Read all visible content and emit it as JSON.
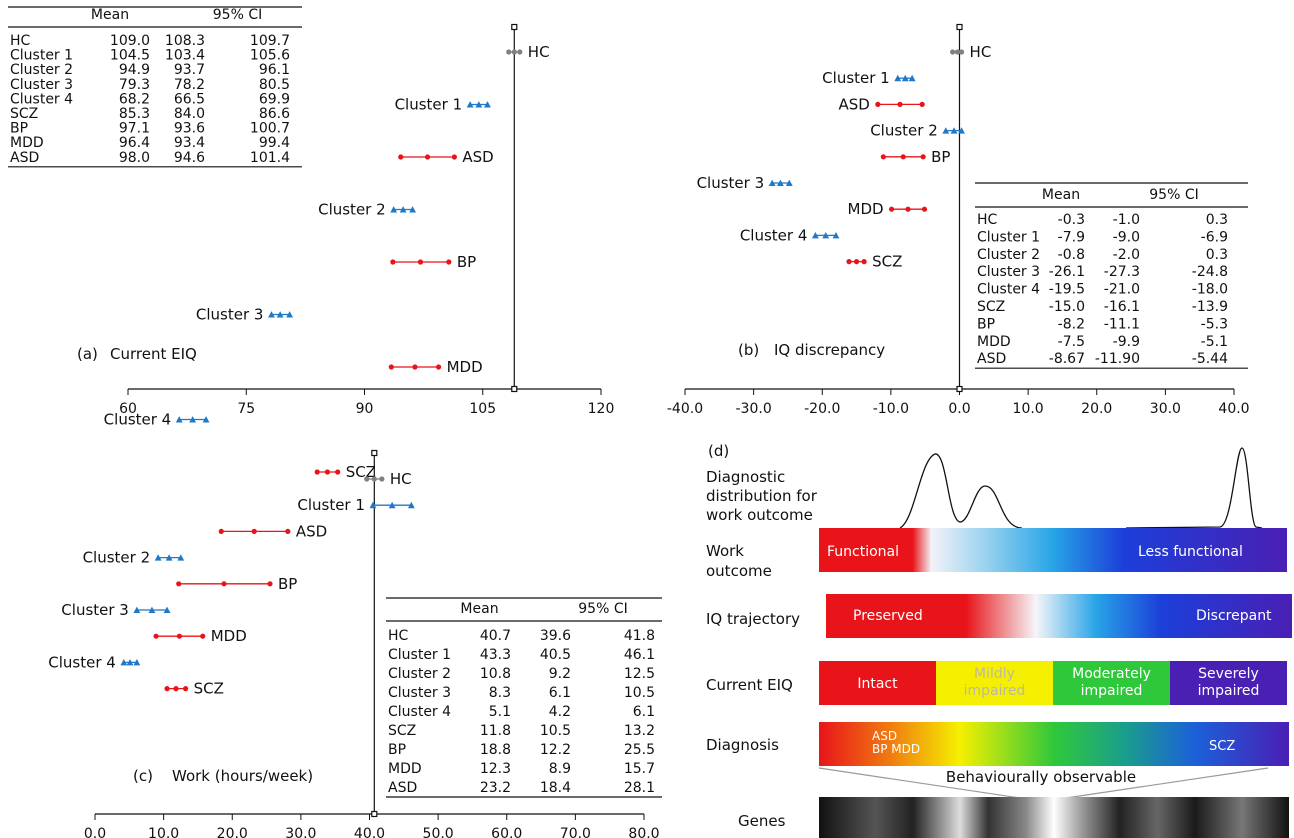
{
  "chart_data": [
    {
      "panel": "(a)",
      "type": "forest",
      "caption_label": "(a)",
      "title": "Current EIQ",
      "x_ticks": [
        "60",
        "75",
        "90",
        "105",
        "120"
      ],
      "xlim": [
        60,
        120
      ],
      "ref_value": 109.0,
      "table_headers": [
        "",
        "Mean",
        "95% CI",
        ""
      ],
      "rows": [
        {
          "label": "HC",
          "mean": "109.0",
          "lo": "108.3",
          "hi": "109.7",
          "group": "hc"
        },
        {
          "label": "Cluster 1",
          "mean": "104.5",
          "lo": "103.4",
          "hi": "105.6",
          "group": "cluster"
        },
        {
          "label": "Cluster 2",
          "mean": "94.9",
          "lo": "93.7",
          "hi": "96.1",
          "group": "cluster"
        },
        {
          "label": "Cluster 3",
          "mean": "79.3",
          "lo": "78.2",
          "hi": "80.5",
          "group": "cluster"
        },
        {
          "label": "Cluster 4",
          "mean": "68.2",
          "lo": "66.5",
          "hi": "69.9",
          "group": "cluster"
        },
        {
          "label": "SCZ",
          "mean": "85.3",
          "lo": "84.0",
          "hi": "86.6",
          "group": "diag"
        },
        {
          "label": "BP",
          "mean": "97.1",
          "lo": "93.6",
          "hi": "100.7",
          "group": "diag"
        },
        {
          "label": "MDD",
          "mean": "96.4",
          "lo": "93.4",
          "hi": "99.4",
          "group": "diag"
        },
        {
          "label": "ASD",
          "mean": "98.0",
          "lo": "94.6",
          "hi": "101.4",
          "group": "diag"
        }
      ],
      "plot_order": [
        "HC",
        "Cluster 1",
        "ASD",
        "Cluster 2",
        "BP",
        "Cluster 3",
        "MDD",
        "Cluster 4",
        "SCZ"
      ]
    },
    {
      "panel": "(b)",
      "type": "forest",
      "caption_label": "(b)",
      "title": "IQ discrepancy",
      "x_ticks": [
        "-40.0",
        "-30.0",
        "-20.0",
        "-10.0",
        "0.0",
        "10.0",
        "20.0",
        "30.0",
        "40.0"
      ],
      "xlim": [
        -40,
        40
      ],
      "ref_value": 0,
      "table_headers": [
        "",
        "Mean",
        "95% CI",
        ""
      ],
      "rows": [
        {
          "label": "HC",
          "mean": "-0.3",
          "lo": "-1.0",
          "hi": "0.3",
          "group": "hc"
        },
        {
          "label": "Cluster 1",
          "mean": "-7.9",
          "lo": "-9.0",
          "hi": "-6.9",
          "group": "cluster"
        },
        {
          "label": "Cluster 2",
          "mean": "-0.8",
          "lo": "-2.0",
          "hi": "0.3",
          "group": "cluster"
        },
        {
          "label": "Cluster 3",
          "mean": "-26.1",
          "lo": "-27.3",
          "hi": "-24.8",
          "group": "cluster"
        },
        {
          "label": "Cluster 4",
          "mean": "-19.5",
          "lo": "-21.0",
          "hi": "-18.0",
          "group": "cluster"
        },
        {
          "label": "SCZ",
          "mean": "-15.0",
          "lo": "-16.1",
          "hi": "-13.9",
          "group": "diag"
        },
        {
          "label": "BP",
          "mean": "-8.2",
          "lo": "-11.1",
          "hi": "-5.3",
          "group": "diag"
        },
        {
          "label": "MDD",
          "mean": "-7.5",
          "lo": "-9.9",
          "hi": "-5.1",
          "group": "diag"
        },
        {
          "label": "ASD",
          "mean": "-8.67",
          "lo": "-11.90",
          "hi": "-5.44",
          "group": "diag"
        }
      ],
      "plot_order": [
        "HC",
        "Cluster 1",
        "ASD",
        "Cluster 2",
        "BP",
        "Cluster 3",
        "MDD",
        "Cluster 4",
        "SCZ"
      ]
    },
    {
      "panel": "(c)",
      "type": "forest",
      "caption_label": "(c)",
      "title": "Work  (hours/week)",
      "x_ticks": [
        "0.0",
        "10.0",
        "20.0",
        "30.0",
        "40.0",
        "50.0",
        "60.0",
        "70.0",
        "80.0"
      ],
      "xlim": [
        0,
        80
      ],
      "ref_value": 40.7,
      "table_headers": [
        "",
        "Mean",
        "95% CI",
        ""
      ],
      "rows": [
        {
          "label": "HC",
          "mean": "40.7",
          "lo": "39.6",
          "hi": "41.8",
          "group": "hc"
        },
        {
          "label": "Cluster 1",
          "mean": "43.3",
          "lo": "40.5",
          "hi": "46.1",
          "group": "cluster"
        },
        {
          "label": "Cluster 2",
          "mean": "10.8",
          "lo": "9.2",
          "hi": "12.5",
          "group": "cluster"
        },
        {
          "label": "Cluster 3",
          "mean": "8.3",
          "lo": "6.1",
          "hi": "10.5",
          "group": "cluster"
        },
        {
          "label": "Cluster 4",
          "mean": "5.1",
          "lo": "4.2",
          "hi": "6.1",
          "group": "cluster"
        },
        {
          "label": "SCZ",
          "mean": "11.8",
          "lo": "10.5",
          "hi": "13.2",
          "group": "diag"
        },
        {
          "label": "BP",
          "mean": "18.8",
          "lo": "12.2",
          "hi": "25.5",
          "group": "diag"
        },
        {
          "label": "MDD",
          "mean": "12.3",
          "lo": "8.9",
          "hi": "15.7",
          "group": "diag"
        },
        {
          "label": "ASD",
          "mean": "23.2",
          "lo": "18.4",
          "hi": "28.1",
          "group": "diag"
        }
      ],
      "plot_order": [
        "HC",
        "Cluster 1",
        "ASD",
        "Cluster 2",
        "BP",
        "Cluster 3",
        "MDD",
        "Cluster 4",
        "SCZ"
      ]
    }
  ],
  "colors": {
    "hc": "#808080",
    "cluster": "#1f78c8",
    "diag": "#e8141a",
    "axis": "#111111"
  },
  "panel_d": {
    "label": "(d)",
    "distribution_label": [
      "Diagnostic",
      "distribution for",
      "work outcome"
    ],
    "rows": [
      {
        "name": "work",
        "label_lines": [
          "Work",
          "outcome"
        ],
        "left_text": "Functional",
        "right_text": "Less functional"
      },
      {
        "name": "iq",
        "label_lines": [
          "IQ trajectory"
        ],
        "left_text": "Preserved",
        "right_text": "Discrepant"
      },
      {
        "name": "eiq",
        "label_lines": [
          "Current EIQ"
        ],
        "segments": [
          {
            "lines": [
              "Intact"
            ],
            "color": "#e8141a"
          },
          {
            "lines": [
              "Mildly",
              "impaired"
            ],
            "color": "#f5f000"
          },
          {
            "lines": [
              "Moderately",
              "impaired"
            ],
            "color": "#2fc83a"
          },
          {
            "lines": [
              "Severely",
              "impaired"
            ],
            "color": "#4a1fb4"
          }
        ]
      },
      {
        "name": "diagnosis",
        "label_lines": [
          "Diagnosis"
        ],
        "left_lines": [
          "ASD",
          "BP MDD"
        ],
        "right_text": "SCZ"
      },
      {
        "name": "genes",
        "label_lines": [
          "Genes"
        ]
      }
    ],
    "observable_text": "Behaviourally observable"
  }
}
